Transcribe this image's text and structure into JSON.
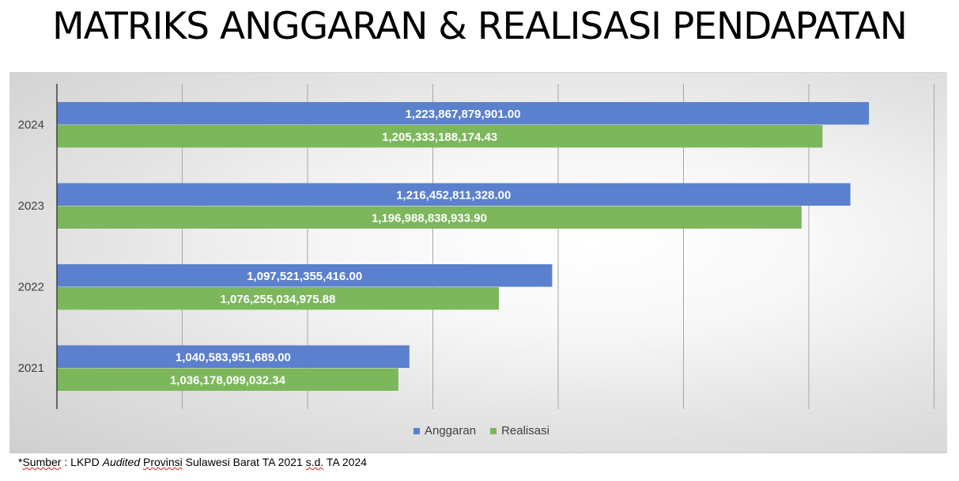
{
  "title": "MATRIKS ANGGARAN & REALISASI PENDAPATAN",
  "chart_data": {
    "type": "bar",
    "orientation": "horizontal",
    "categories": [
      "2024",
      "2023",
      "2022",
      "2021"
    ],
    "series": [
      {
        "name": "Anggaran",
        "color": "#5b80cd",
        "values": [
          1223867879901.0,
          1216452811328.0,
          1097521355416.0,
          1040583951689.0
        ],
        "labels": [
          "1,223,867,879,901.00",
          "1,216,452,811,328.00",
          "1,097,521,355,416.00",
          "1,040,583,951,689.00"
        ]
      },
      {
        "name": "Realisasi",
        "color": "#7db75c",
        "values": [
          1205333188174.43,
          1196988838933.9,
          1076255034975.88,
          1036178099032.34
        ],
        "labels": [
          "1,205,333,188,174.43",
          "1,196,988,838,933.90",
          "1,076,255,034,975.88",
          "1,036,178,099,032.34"
        ]
      }
    ],
    "xlim": [
      900000000000,
      1250000000000
    ],
    "grid": true,
    "legend_position": "bottom-center",
    "tick_labels_shown": false
  },
  "source": {
    "prefix": "*",
    "word_sumber": "Sumber",
    "text1": " : LKPD ",
    "audited": "Audited",
    "text2": " ",
    "word_provinsi": "Provinsi",
    "text3": " Sulawesi Barat TA 2021 ",
    "sd": "s.d.",
    "text4": " TA 2024"
  }
}
